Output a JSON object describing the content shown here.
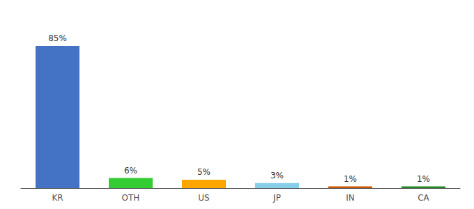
{
  "chart_data": {
    "type": "bar",
    "categories": [
      "KR",
      "OTH",
      "US",
      "JP",
      "IN",
      "CA"
    ],
    "values": [
      85,
      6,
      5,
      3,
      1,
      1
    ],
    "value_labels": [
      "85%",
      "6%",
      "5%",
      "3%",
      "1%",
      "1%"
    ],
    "colors": [
      "#4472C4",
      "#33CC33",
      "#FFA500",
      "#87CEEB",
      "#CC5500",
      "#228B22"
    ],
    "ylim": [
      0,
      100
    ],
    "data_labels": true,
    "tick_labels": "x",
    "grid": false
  }
}
